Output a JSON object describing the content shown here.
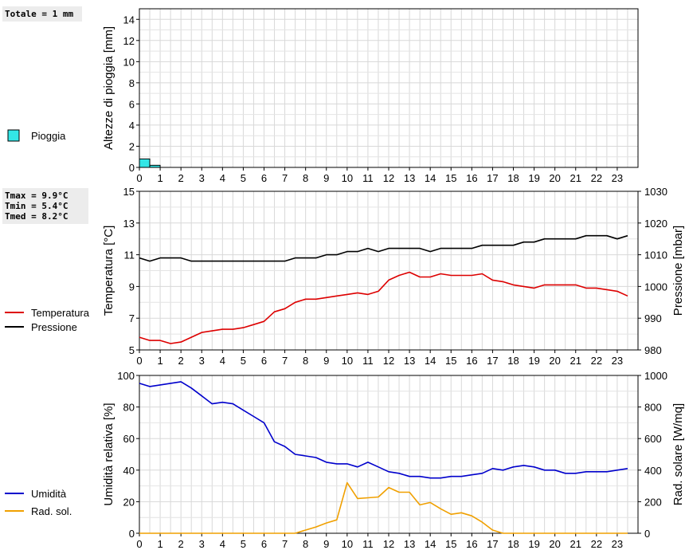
{
  "chart_data": [
    {
      "type": "bar",
      "id": "rain",
      "stat_lines": [
        "Totale = 1 mm"
      ],
      "ylabel": "Altezze di pioggia [mm]",
      "ylim": [
        0,
        15
      ],
      "yticks": [
        0,
        2,
        4,
        6,
        8,
        10,
        12,
        14
      ],
      "xlim": [
        0,
        24
      ],
      "xticks": [
        "0",
        "1",
        "2",
        "3",
        "4",
        "5",
        "6",
        "7",
        "8",
        "9",
        "10",
        "11",
        "12",
        "13",
        "14",
        "15",
        "16",
        "17",
        "18",
        "19",
        "20",
        "21",
        "22",
        "23"
      ],
      "grid": true,
      "legend": [
        {
          "name": "Pioggia",
          "color": "#33e6e6"
        }
      ],
      "series": [
        {
          "name": "Pioggia",
          "color": "#33e6e6",
          "bar_width": 0.5,
          "x": [
            0,
            0.5
          ],
          "values": [
            0.8,
            0.2
          ]
        }
      ]
    },
    {
      "type": "line",
      "id": "temp",
      "stat_lines": [
        "Tmax =  9.9°C",
        "Tmin =  5.4°C",
        "Tmed =  8.2°C"
      ],
      "ylabel": "Temperatura [°C]",
      "ylabel_right": "Pressione [mbar]",
      "ylim": [
        5,
        15
      ],
      "yticks": [
        5,
        7,
        9,
        11,
        13,
        15
      ],
      "ylim_right": [
        980,
        1030
      ],
      "yticks_right": [
        980,
        990,
        1000,
        1010,
        1020,
        1030
      ],
      "xlim": [
        0,
        24
      ],
      "xticks": [
        "0",
        "1",
        "2",
        "3",
        "4",
        "5",
        "6",
        "7",
        "8",
        "9",
        "10",
        "11",
        "12",
        "13",
        "14",
        "15",
        "16",
        "17",
        "18",
        "19",
        "20",
        "21",
        "22",
        "23"
      ],
      "grid": true,
      "legend": [
        {
          "name": "Temperatura",
          "color": "#dd0000"
        },
        {
          "name": "Pressione",
          "color": "#000000"
        }
      ],
      "series": [
        {
          "name": "Temperatura",
          "color": "#dd0000",
          "axis": "left",
          "x": [
            0,
            0.5,
            1,
            1.5,
            2,
            2.5,
            3,
            3.5,
            4,
            4.5,
            5,
            5.5,
            6,
            6.5,
            7,
            7.5,
            8,
            8.5,
            9,
            9.5,
            10,
            10.5,
            11,
            11.5,
            12,
            12.5,
            13,
            13.5,
            14,
            14.5,
            15,
            15.5,
            16,
            16.5,
            17,
            17.5,
            18,
            18.5,
            19,
            19.5,
            20,
            20.5,
            21,
            21.5,
            22,
            22.5,
            23,
            23.5
          ],
          "values": [
            5.8,
            5.6,
            5.6,
            5.4,
            5.5,
            5.8,
            6.1,
            6.2,
            6.3,
            6.3,
            6.4,
            6.6,
            6.8,
            7.4,
            7.6,
            8.0,
            8.2,
            8.2,
            8.3,
            8.4,
            8.5,
            8.6,
            8.5,
            8.7,
            9.4,
            9.7,
            9.9,
            9.6,
            9.6,
            9.8,
            9.7,
            9.7,
            9.7,
            9.8,
            9.4,
            9.3,
            9.1,
            9.0,
            8.9,
            9.1,
            9.1,
            9.1,
            9.1,
            8.9,
            8.9,
            8.8,
            8.7,
            8.4
          ]
        },
        {
          "name": "Pressione",
          "color": "#000000",
          "axis": "right",
          "x": [
            0,
            0.5,
            1,
            1.5,
            2,
            2.5,
            3,
            3.5,
            4,
            4.5,
            5,
            5.5,
            6,
            6.5,
            7,
            7.5,
            8,
            8.5,
            9,
            9.5,
            10,
            10.5,
            11,
            11.5,
            12,
            12.5,
            13,
            13.5,
            14,
            14.5,
            15,
            15.5,
            16,
            16.5,
            17,
            17.5,
            18,
            18.5,
            19,
            19.5,
            20,
            20.5,
            21,
            21.5,
            22,
            22.5,
            23,
            23.5
          ],
          "values": [
            1009,
            1008,
            1009,
            1009,
            1009,
            1008,
            1008,
            1008,
            1008,
            1008,
            1008,
            1008,
            1008,
            1008,
            1008,
            1009,
            1009,
            1009,
            1010,
            1010,
            1011,
            1011,
            1012,
            1011,
            1012,
            1012,
            1012,
            1012,
            1011,
            1012,
            1012,
            1012,
            1012,
            1013,
            1013,
            1013,
            1013,
            1014,
            1014,
            1015,
            1015,
            1015,
            1015,
            1016,
            1016,
            1016,
            1015,
            1016
          ]
        }
      ]
    },
    {
      "type": "line",
      "id": "hum",
      "stat_lines": [],
      "ylabel": "Umidità relativa [%]",
      "ylabel_right": "Rad. solare [W/mq]",
      "ylim": [
        0,
        100
      ],
      "yticks": [
        0,
        20,
        40,
        60,
        80,
        100
      ],
      "ylim_right": [
        0,
        1000
      ],
      "yticks_right": [
        0,
        200,
        400,
        600,
        800,
        1000
      ],
      "xlim": [
        0,
        24
      ],
      "xticks": [
        "0",
        "1",
        "2",
        "3",
        "4",
        "5",
        "6",
        "7",
        "8",
        "9",
        "10",
        "11",
        "12",
        "13",
        "14",
        "15",
        "16",
        "17",
        "18",
        "19",
        "20",
        "21",
        "22",
        "23"
      ],
      "grid": true,
      "legend": [
        {
          "name": "Umidità",
          "color": "#0000cc"
        },
        {
          "name": "Rad. sol.",
          "color": "#f0a000"
        }
      ],
      "series": [
        {
          "name": "Umidità",
          "color": "#0000cc",
          "axis": "left",
          "x": [
            0,
            0.5,
            1,
            1.5,
            2,
            2.5,
            3,
            3.5,
            4,
            4.5,
            5,
            5.5,
            6,
            6.5,
            7,
            7.5,
            8,
            8.5,
            9,
            9.5,
            10,
            10.5,
            11,
            11.5,
            12,
            12.5,
            13,
            13.5,
            14,
            14.5,
            15,
            15.5,
            16,
            16.5,
            17,
            17.5,
            18,
            18.5,
            19,
            19.5,
            20,
            20.5,
            21,
            21.5,
            22,
            22.5,
            23,
            23.5
          ],
          "values": [
            95,
            93,
            94,
            95,
            96,
            92,
            87,
            82,
            83,
            82,
            78,
            74,
            70,
            58,
            55,
            50,
            49,
            48,
            45,
            44,
            44,
            42,
            45,
            42,
            39,
            38,
            36,
            36,
            35,
            35,
            36,
            36,
            37,
            38,
            41,
            40,
            42,
            43,
            42,
            40,
            40,
            38,
            38,
            39,
            39,
            39,
            40,
            41
          ]
        },
        {
          "name": "Rad. sol.",
          "color": "#f0a000",
          "axis": "right",
          "x": [
            0,
            0.5,
            1,
            1.5,
            2,
            2.5,
            3,
            3.5,
            4,
            4.5,
            5,
            5.5,
            6,
            6.5,
            7,
            7.5,
            8,
            8.5,
            9,
            9.5,
            10,
            10.5,
            11,
            11.5,
            12,
            12.5,
            13,
            13.5,
            14,
            14.5,
            15,
            15.5,
            16,
            16.5,
            17,
            17.5,
            18,
            18.5,
            19,
            19.5,
            20,
            20.5,
            21,
            21.5,
            22,
            22.5,
            23,
            23.5
          ],
          "values": [
            0,
            0,
            0,
            0,
            0,
            0,
            0,
            0,
            0,
            0,
            0,
            0,
            0,
            0,
            0,
            0,
            20,
            40,
            65,
            85,
            320,
            220,
            225,
            230,
            290,
            260,
            260,
            180,
            195,
            155,
            120,
            130,
            110,
            70,
            20,
            0,
            0,
            0,
            0,
            0,
            0,
            0,
            0,
            0,
            0,
            0,
            0,
            0
          ]
        }
      ]
    }
  ]
}
